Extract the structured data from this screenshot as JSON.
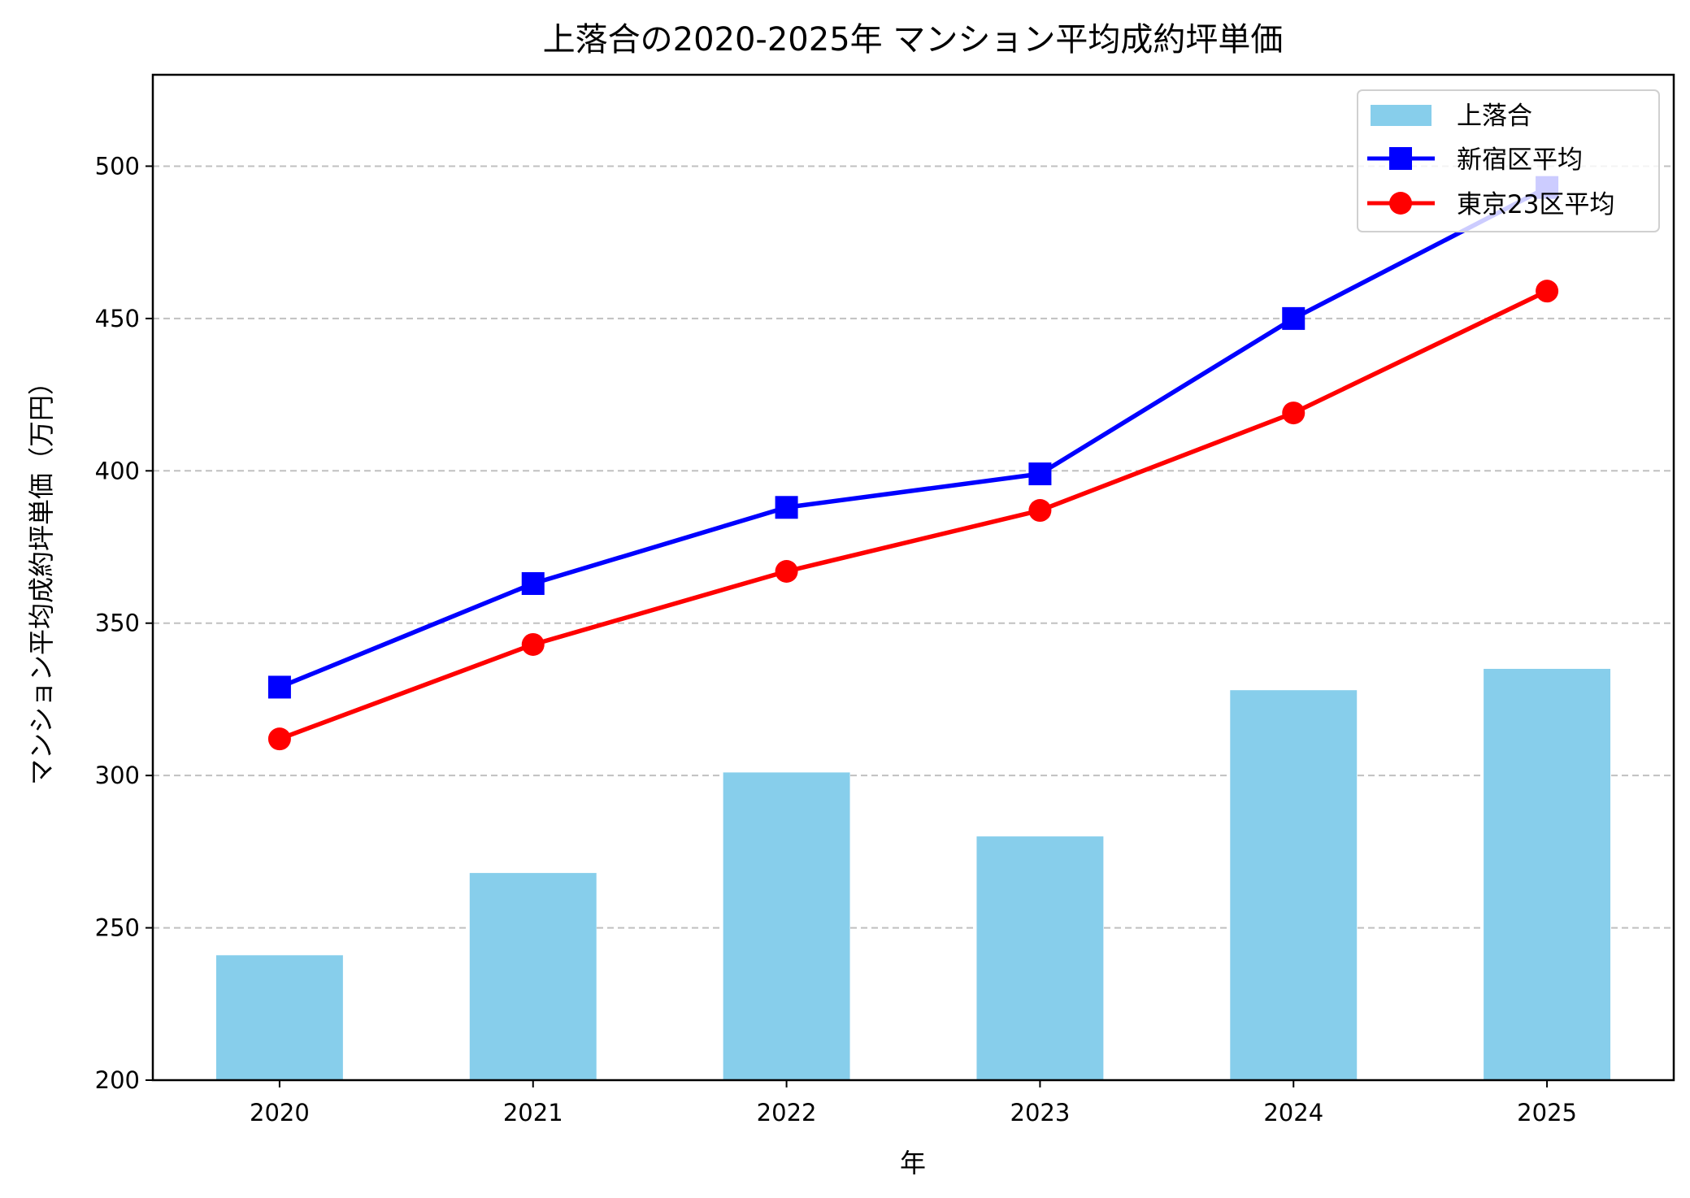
{
  "chart_data": {
    "type": "bar+line",
    "title": "上落合の2020-2025年 マンション平均成約坪単価",
    "xlabel": "年",
    "ylabel": "マンション平均成約坪単価（万円）",
    "categories": [
      "2020",
      "2021",
      "2022",
      "2023",
      "2024",
      "2025"
    ],
    "ylim": [
      200,
      530
    ],
    "yticks": [
      200,
      250,
      300,
      350,
      400,
      450,
      500
    ],
    "grid": "y, dashed",
    "legend_position": "top-right",
    "series": [
      {
        "name": "上落合",
        "type": "bar",
        "color": "#87CEEB",
        "values": [
          241,
          268,
          301,
          280,
          328,
          335
        ]
      },
      {
        "name": "新宿区平均",
        "type": "line",
        "marker": "square",
        "color": "#0000FF",
        "values": [
          329,
          363,
          388,
          399,
          450,
          493
        ]
      },
      {
        "name": "東京23区平均",
        "type": "line",
        "marker": "circle",
        "color": "#FF0000",
        "values": [
          312,
          343,
          367,
          387,
          419,
          459
        ]
      }
    ]
  }
}
